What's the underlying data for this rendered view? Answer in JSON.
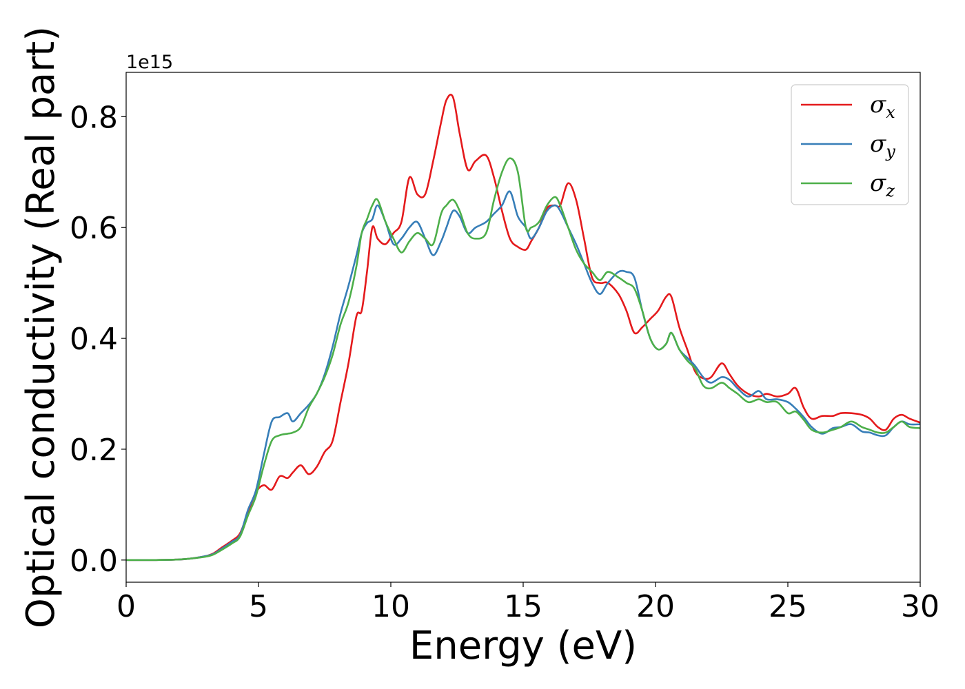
{
  "chart_data": {
    "type": "line",
    "xlabel": "Energy (eV)",
    "ylabel": "Optical conductivity (Real part)",
    "y_offset_label": "1e15",
    "xlim": [
      0,
      30
    ],
    "ylim": [
      -0.04,
      0.88
    ],
    "xticks": [
      0,
      5,
      10,
      15,
      20,
      25,
      30
    ],
    "xtick_labels": [
      "0",
      "5",
      "10",
      "15",
      "20",
      "25",
      "30"
    ],
    "yticks": [
      0.0,
      0.2,
      0.4,
      0.6,
      0.8
    ],
    "ytick_labels": [
      "0.0",
      "0.2",
      "0.4",
      "0.6",
      "0.8"
    ],
    "grid": false,
    "legend_position": "top-right",
    "series": [
      {
        "name": "σx",
        "legend_symbol": "σ",
        "legend_subscript": "x",
        "color": "#e41a1c",
        "x": [
          0,
          1,
          2,
          2.5,
          3,
          3.3,
          3.6,
          4.0,
          4.3,
          4.6,
          4.9,
          5.2,
          5.5,
          5.8,
          6.1,
          6.3,
          6.6,
          6.9,
          7.2,
          7.5,
          7.8,
          8.1,
          8.4,
          8.7,
          8.9,
          9.1,
          9.3,
          9.5,
          9.8,
          10.1,
          10.4,
          10.7,
          11.0,
          11.3,
          11.6,
          11.9,
          12.1,
          12.35,
          12.6,
          12.9,
          13.2,
          13.6,
          13.9,
          14.2,
          14.5,
          14.8,
          15.1,
          15.3,
          15.6,
          15.9,
          16.2,
          16.4,
          16.7,
          17.0,
          17.3,
          17.6,
          17.9,
          18.2,
          18.6,
          18.9,
          19.2,
          19.5,
          19.8,
          20.1,
          20.4,
          20.6,
          20.9,
          21.2,
          21.5,
          21.8,
          22.1,
          22.5,
          22.8,
          23.1,
          23.5,
          23.9,
          24.2,
          24.6,
          25.0,
          25.3,
          25.6,
          25.9,
          26.3,
          26.7,
          27.0,
          27.4,
          27.8,
          28.1,
          28.4,
          28.7,
          29.0,
          29.3,
          29.6,
          30.0
        ],
        "values": [
          0,
          0,
          0.001,
          0.003,
          0.007,
          0.012,
          0.022,
          0.035,
          0.048,
          0.085,
          0.122,
          0.135,
          0.127,
          0.151,
          0.148,
          0.158,
          0.171,
          0.155,
          0.168,
          0.195,
          0.215,
          0.285,
          0.355,
          0.44,
          0.45,
          0.52,
          0.6,
          0.58,
          0.57,
          0.59,
          0.61,
          0.69,
          0.66,
          0.66,
          0.72,
          0.79,
          0.83,
          0.835,
          0.77,
          0.705,
          0.72,
          0.73,
          0.69,
          0.63,
          0.58,
          0.565,
          0.56,
          0.575,
          0.6,
          0.635,
          0.64,
          0.64,
          0.68,
          0.65,
          0.58,
          0.51,
          0.5,
          0.5,
          0.48,
          0.45,
          0.41,
          0.42,
          0.435,
          0.45,
          0.475,
          0.475,
          0.42,
          0.38,
          0.34,
          0.328,
          0.33,
          0.355,
          0.335,
          0.315,
          0.3,
          0.295,
          0.3,
          0.295,
          0.3,
          0.31,
          0.275,
          0.255,
          0.26,
          0.26,
          0.265,
          0.265,
          0.262,
          0.255,
          0.24,
          0.235,
          0.255,
          0.262,
          0.255,
          0.248
        ]
      },
      {
        "name": "σy",
        "legend_symbol": "σ",
        "legend_subscript": "y",
        "color": "#377eb8",
        "x": [
          0,
          1,
          2,
          2.5,
          3,
          3.3,
          3.6,
          4.0,
          4.3,
          4.6,
          4.9,
          5.2,
          5.5,
          5.8,
          6.1,
          6.3,
          6.6,
          6.9,
          7.2,
          7.5,
          7.8,
          8.1,
          8.4,
          8.7,
          8.9,
          9.1,
          9.3,
          9.5,
          9.8,
          10.1,
          10.4,
          10.7,
          11.0,
          11.3,
          11.6,
          11.9,
          12.1,
          12.35,
          12.6,
          12.9,
          13.2,
          13.6,
          13.9,
          14.2,
          14.5,
          14.8,
          15.1,
          15.3,
          15.6,
          15.9,
          16.2,
          16.4,
          16.7,
          17.0,
          17.3,
          17.6,
          17.9,
          18.2,
          18.6,
          18.9,
          19.2,
          19.5,
          19.8,
          20.1,
          20.4,
          20.6,
          20.9,
          21.2,
          21.5,
          21.8,
          22.1,
          22.5,
          22.8,
          23.1,
          23.5,
          23.9,
          24.2,
          24.6,
          25.0,
          25.3,
          25.6,
          25.9,
          26.3,
          26.7,
          27.0,
          27.4,
          27.8,
          28.1,
          28.4,
          28.7,
          29.0,
          29.3,
          29.6,
          30.0
        ],
        "values": [
          0,
          0,
          0.001,
          0.003,
          0.007,
          0.011,
          0.02,
          0.033,
          0.045,
          0.09,
          0.125,
          0.19,
          0.25,
          0.258,
          0.265,
          0.25,
          0.265,
          0.28,
          0.3,
          0.335,
          0.385,
          0.445,
          0.495,
          0.55,
          0.59,
          0.608,
          0.615,
          0.64,
          0.61,
          0.57,
          0.58,
          0.6,
          0.61,
          0.58,
          0.55,
          0.575,
          0.6,
          0.63,
          0.62,
          0.59,
          0.6,
          0.61,
          0.625,
          0.64,
          0.665,
          0.62,
          0.6,
          0.58,
          0.6,
          0.63,
          0.64,
          0.63,
          0.6,
          0.57,
          0.535,
          0.5,
          0.48,
          0.5,
          0.52,
          0.52,
          0.51,
          0.45,
          0.4,
          0.38,
          0.39,
          0.41,
          0.38,
          0.365,
          0.35,
          0.33,
          0.32,
          0.33,
          0.325,
          0.31,
          0.295,
          0.305,
          0.29,
          0.29,
          0.285,
          0.273,
          0.258,
          0.24,
          0.228,
          0.238,
          0.24,
          0.245,
          0.232,
          0.23,
          0.225,
          0.225,
          0.24,
          0.25,
          0.245,
          0.245
        ]
      },
      {
        "name": "σz",
        "legend_symbol": "σ",
        "legend_subscript": "z",
        "color": "#4daf4a",
        "x": [
          0,
          1,
          2,
          2.5,
          3,
          3.3,
          3.6,
          4.0,
          4.3,
          4.6,
          4.9,
          5.2,
          5.5,
          5.8,
          6.1,
          6.3,
          6.6,
          6.9,
          7.2,
          7.5,
          7.8,
          8.1,
          8.4,
          8.7,
          8.9,
          9.1,
          9.3,
          9.5,
          9.8,
          10.1,
          10.4,
          10.7,
          11.0,
          11.3,
          11.6,
          11.9,
          12.1,
          12.35,
          12.6,
          12.9,
          13.2,
          13.6,
          13.9,
          14.2,
          14.5,
          14.8,
          15.1,
          15.3,
          15.6,
          15.9,
          16.2,
          16.4,
          16.7,
          17.0,
          17.3,
          17.6,
          17.9,
          18.2,
          18.6,
          18.9,
          19.2,
          19.5,
          19.8,
          20.1,
          20.4,
          20.6,
          20.9,
          21.2,
          21.5,
          21.8,
          22.1,
          22.5,
          22.8,
          23.1,
          23.5,
          23.9,
          24.2,
          24.6,
          25.0,
          25.3,
          25.6,
          25.9,
          26.3,
          26.7,
          27.0,
          27.4,
          27.8,
          28.1,
          28.4,
          28.7,
          29.0,
          29.3,
          29.6,
          30.0
        ],
        "values": [
          0,
          0,
          0.001,
          0.003,
          0.006,
          0.01,
          0.018,
          0.03,
          0.042,
          0.08,
          0.115,
          0.17,
          0.215,
          0.225,
          0.228,
          0.23,
          0.24,
          0.275,
          0.3,
          0.33,
          0.37,
          0.425,
          0.465,
          0.53,
          0.59,
          0.615,
          0.64,
          0.65,
          0.61,
          0.58,
          0.555,
          0.575,
          0.59,
          0.58,
          0.57,
          0.625,
          0.64,
          0.65,
          0.63,
          0.59,
          0.58,
          0.59,
          0.65,
          0.7,
          0.725,
          0.7,
          0.6,
          0.6,
          0.61,
          0.64,
          0.655,
          0.64,
          0.6,
          0.56,
          0.535,
          0.52,
          0.505,
          0.52,
          0.51,
          0.5,
          0.49,
          0.45,
          0.4,
          0.38,
          0.39,
          0.41,
          0.38,
          0.36,
          0.345,
          0.315,
          0.31,
          0.32,
          0.31,
          0.3,
          0.285,
          0.29,
          0.285,
          0.285,
          0.265,
          0.268,
          0.253,
          0.235,
          0.23,
          0.235,
          0.24,
          0.25,
          0.24,
          0.235,
          0.23,
          0.23,
          0.24,
          0.25,
          0.24,
          0.238
        ]
      }
    ]
  }
}
